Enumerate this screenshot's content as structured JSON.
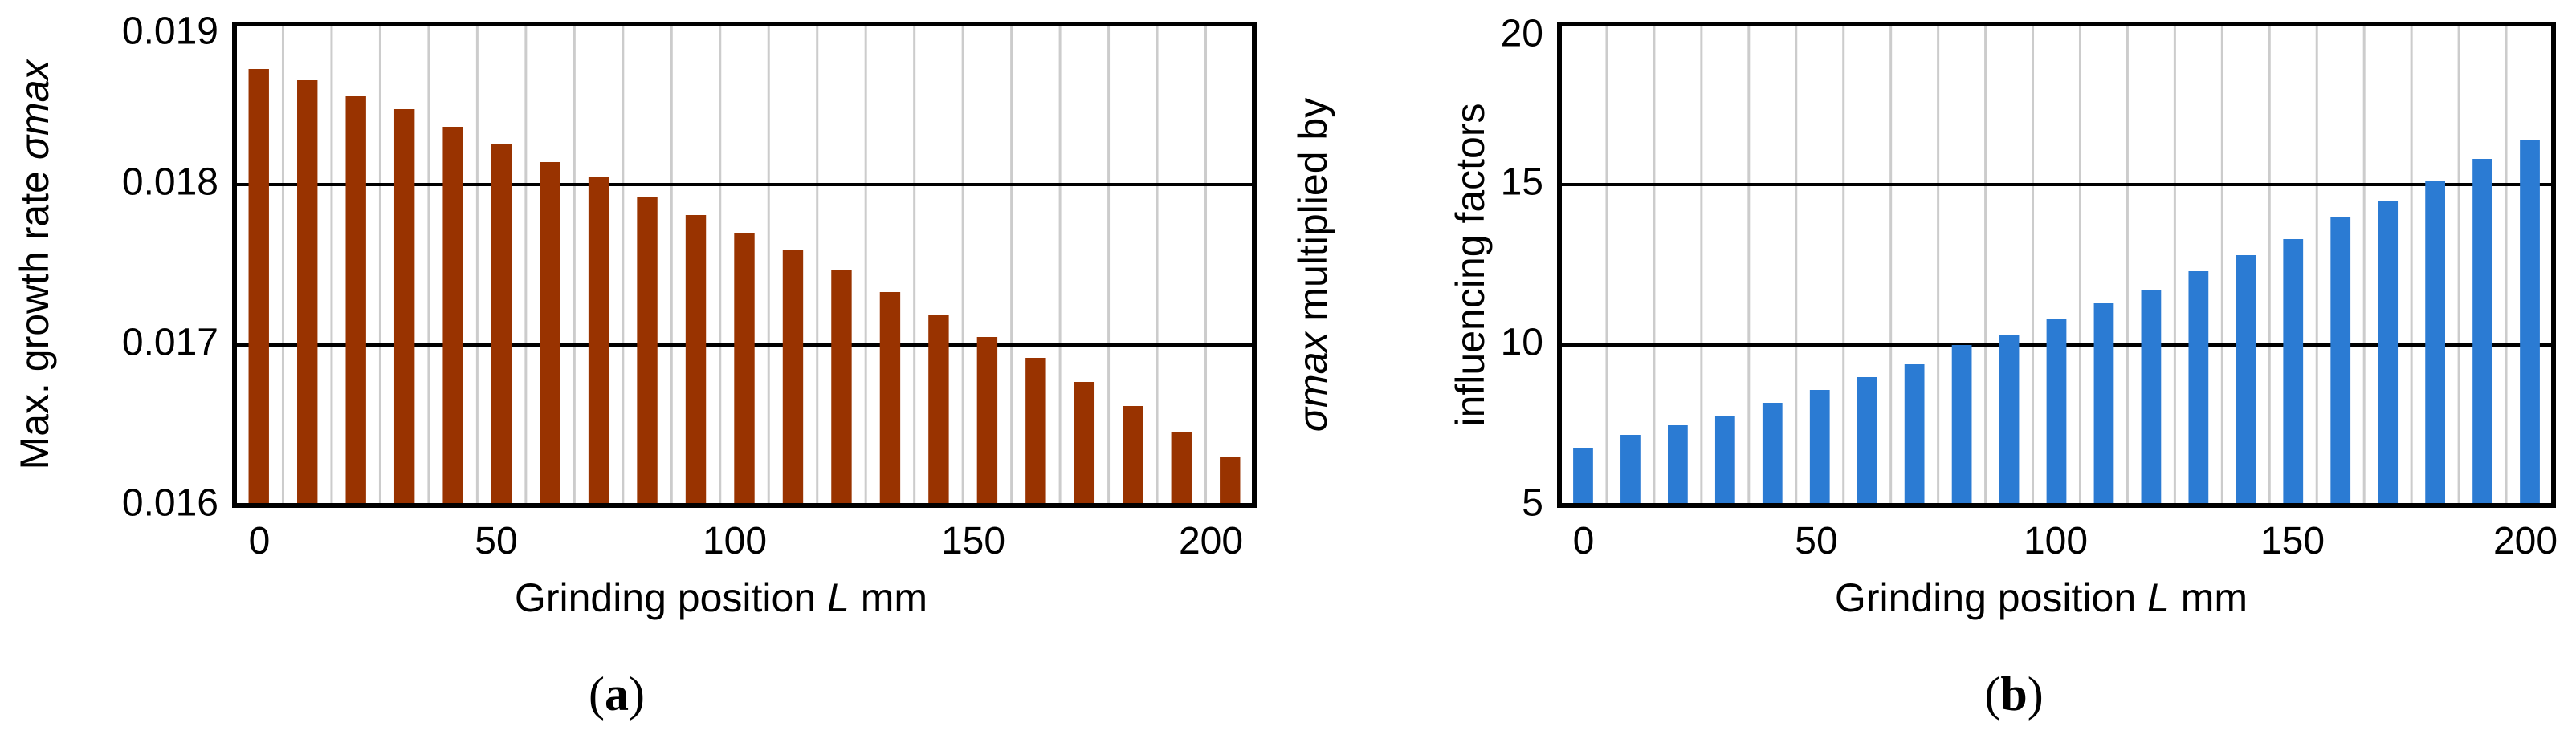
{
  "chart_data": [
    {
      "id": "a",
      "type": "bar",
      "panel_label": "a",
      "x": [
        0,
        10,
        20,
        30,
        40,
        50,
        60,
        70,
        80,
        90,
        100,
        110,
        120,
        130,
        140,
        150,
        160,
        170,
        180,
        190,
        200
      ],
      "values": [
        0.01872,
        0.01865,
        0.01855,
        0.01847,
        0.01836,
        0.01825,
        0.01814,
        0.01805,
        0.01792,
        0.01781,
        0.0177,
        0.01759,
        0.01747,
        0.01733,
        0.01719,
        0.01705,
        0.01692,
        0.01677,
        0.01662,
        0.01646,
        0.0163
      ],
      "color": "#993300",
      "xlabel": {
        "pre": "Grinding position ",
        "var": "L",
        "post": " mm"
      },
      "ylabel": {
        "pre": "Max. growth rate ",
        "var": "σmax"
      },
      "xticks": [
        "0",
        "50",
        "100",
        "150",
        "200"
      ],
      "yticks": [
        "0.016",
        "0.017",
        "0.018",
        "0.019"
      ],
      "ylim": [
        0.016,
        0.019
      ],
      "xlim": [
        -5,
        205
      ],
      "grid": "horizontal major + vertical"
    },
    {
      "id": "b",
      "type": "bar",
      "panel_label": "b",
      "x": [
        0,
        10,
        20,
        30,
        40,
        50,
        60,
        70,
        80,
        90,
        100,
        110,
        120,
        130,
        140,
        150,
        160,
        170,
        180,
        190,
        200
      ],
      "values": [
        6.8,
        7.2,
        7.5,
        7.8,
        8.2,
        8.6,
        9.0,
        9.4,
        10.0,
        10.3,
        10.8,
        11.3,
        11.7,
        12.3,
        12.8,
        13.3,
        14.0,
        14.5,
        15.1,
        15.8,
        16.4
      ],
      "color": "#2b7bd3",
      "xlabel": {
        "pre": "Grinding position ",
        "var": "L",
        "post": " mm"
      },
      "ylabel": {
        "line1_var": "σmax",
        "line1_post": " multiplied by",
        "line2": "influencing factors"
      },
      "xticks": [
        "0",
        "50",
        "100",
        "150",
        "200"
      ],
      "yticks": [
        "5",
        "10",
        "15",
        "20"
      ],
      "ylim": [
        5,
        20
      ],
      "xlim": [
        -5,
        205
      ],
      "grid": "horizontal major + vertical"
    }
  ]
}
